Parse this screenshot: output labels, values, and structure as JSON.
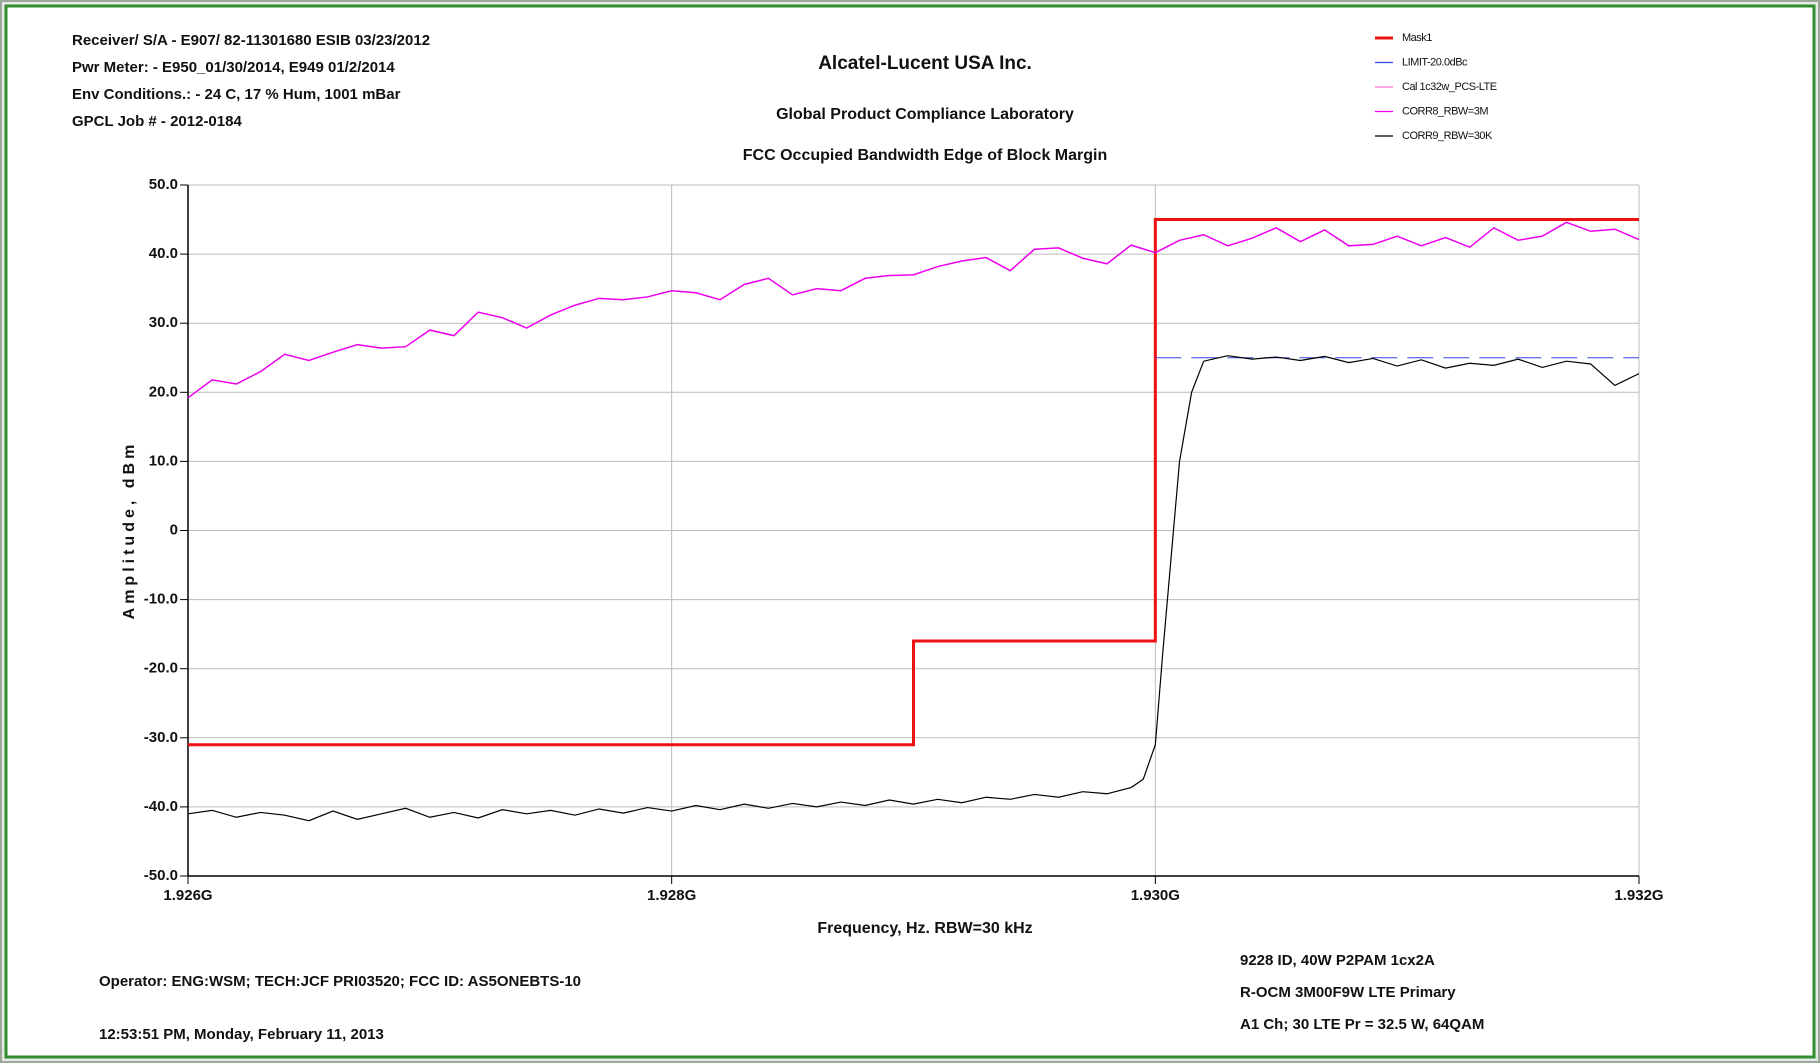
{
  "chart_data": {
    "type": "line",
    "header_lines": [
      "Receiver/ S/A - E907/ 82-11301680 ESIB 03/23/2012",
      "Pwr Meter: - E950_01/30/2014, E949 01/2/2014",
      "Env Conditions.: - 24 C, 17 % Hum, 1001 mBar",
      "GPCL Job #  - 2012-0184"
    ],
    "title": "Alcatel-Lucent USA Inc.",
    "subtitles": [
      "Global Product Compliance Laboratory",
      "FCC Occupied Bandwidth Edge of Block Margin"
    ],
    "x_label": "Frequency, Hz.   RBW=30 kHz",
    "y_label": "Amplitude, dBm",
    "footer_left": [
      "Operator:  ENG:WSM; TECH:JCF PRI03520;  FCC ID: AS5ONEBTS-10",
      "12:53:51 PM, Monday, February 11, 2013"
    ],
    "footer_right": [
      "9228 ID, 40W P2PAM 1cx2A",
      "R-OCM 3M00F9W LTE Primary",
      "A1 Ch; 30 LTE Pr = 32.5 W, 64QAM"
    ],
    "xlim": [
      1926000000,
      1932000000
    ],
    "xticks": [
      {
        "value": 1926000000,
        "label": "1.926G"
      },
      {
        "value": 1928000000,
        "label": "1.928G"
      },
      {
        "value": 1930000000,
        "label": "1.930G"
      },
      {
        "value": 1932000000,
        "label": "1.932G"
      }
    ],
    "ylim": [
      -50,
      50
    ],
    "yticks": [
      {
        "value": -50,
        "label": "-50.0"
      },
      {
        "value": -40,
        "label": "-40.0"
      },
      {
        "value": -30,
        "label": "-30.0"
      },
      {
        "value": -20,
        "label": "-20.0"
      },
      {
        "value": -10,
        "label": "-10.0"
      },
      0,
      {
        "value": 10,
        "label": "10.0"
      },
      {
        "value": 20,
        "label": "20.0"
      },
      {
        "value": 30,
        "label": "30.0"
      },
      {
        "value": 40,
        "label": "40.0"
      },
      {
        "value": 50,
        "label": "50.0"
      }
    ],
    "grid": true,
    "series": [
      {
        "name": "Mask1",
        "color": "#ee1111",
        "width": 3,
        "x": [
          1926000000,
          1929000000,
          1929000000,
          1930000000,
          1930000000,
          1932000000
        ],
        "values": [
          -31,
          -31,
          -16,
          -16,
          45,
          45
        ]
      },
      {
        "name": "LIMIT-20.0dBc",
        "color": "#3344dd",
        "width": 1,
        "dashed": true,
        "x": [
          1930000000,
          1932000000
        ],
        "values": [
          25,
          25
        ]
      },
      {
        "name": "Cal 1c32w_PCS-LTE",
        "color": "#ff77dd",
        "width": 1,
        "x": [],
        "values": []
      },
      {
        "name": "CORR8_RBW=3M",
        "color": "#ee00ee",
        "width": 1.5,
        "x": [
          1926000000,
          1926100000,
          1926200000,
          1926300000,
          1926400000,
          1926500000,
          1926600000,
          1926700000,
          1926800000,
          1926900000,
          1927000000,
          1927100000,
          1927200000,
          1927300000,
          1927400000,
          1927500000,
          1927600000,
          1927700000,
          1927800000,
          1927900000,
          1928000000,
          1928100000,
          1928200000,
          1928300000,
          1928400000,
          1928500000,
          1928600000,
          1928700000,
          1928800000,
          1928900000,
          1929000000,
          1929100000,
          1929200000,
          1929300000,
          1929400000,
          1929500000,
          1929600000,
          1929700000,
          1929800000,
          1929900000,
          1930000000,
          1930100000,
          1930200000,
          1930300000,
          1930400000,
          1930500000,
          1930600000,
          1930700000,
          1930800000,
          1930900000,
          1931000000,
          1931100000,
          1931200000,
          1931300000,
          1931400000,
          1931500000,
          1931600000,
          1931700000,
          1931800000,
          1931900000,
          1932000000
        ],
        "values": [
          19.2,
          21.8,
          21.2,
          23.0,
          25.5,
          24.6,
          25.8,
          26.9,
          26.4,
          26.6,
          29.0,
          28.2,
          31.6,
          30.8,
          29.3,
          31.2,
          32.6,
          33.6,
          33.4,
          33.8,
          34.7,
          34.4,
          33.4,
          35.6,
          36.5,
          34.1,
          35.0,
          34.7,
          36.5,
          36.9,
          37.0,
          38.2,
          39.0,
          39.5,
          37.6,
          40.7,
          40.9,
          39.4,
          38.6,
          41.3,
          40.2,
          42.0,
          42.8,
          41.2,
          42.3,
          43.8,
          41.8,
          43.5,
          41.2,
          41.4,
          42.6,
          41.2,
          42.4,
          41.0,
          43.8,
          42.0,
          42.6,
          44.6,
          43.3,
          43.6,
          42.1
        ]
      },
      {
        "name": "CORR9_RBW=30K",
        "color": "#000000",
        "width": 1.2,
        "x": [
          1926000000,
          1926100000,
          1926200000,
          1926300000,
          1926400000,
          1926500000,
          1926600000,
          1926700000,
          1926800000,
          1926900000,
          1927000000,
          1927100000,
          1927200000,
          1927300000,
          1927400000,
          1927500000,
          1927600000,
          1927700000,
          1927800000,
          1927900000,
          1928000000,
          1928100000,
          1928200000,
          1928300000,
          1928400000,
          1928500000,
          1928600000,
          1928700000,
          1928800000,
          1928900000,
          1929000000,
          1929100000,
          1929200000,
          1929300000,
          1929400000,
          1929500000,
          1929600000,
          1929700000,
          1929800000,
          1929900000,
          1929950000,
          1930000000,
          1930030000,
          1930060000,
          1930100000,
          1930150000,
          1930200000,
          1930300000,
          1930400000,
          1930500000,
          1930600000,
          1930700000,
          1930800000,
          1930900000,
          1931000000,
          1931100000,
          1931200000,
          1931300000,
          1931400000,
          1931500000,
          1931600000,
          1931700000,
          1931800000,
          1931900000,
          1932000000
        ],
        "values": [
          -41,
          -40.5,
          -41.5,
          -40.8,
          -41.2,
          -42,
          -40.6,
          -41.8,
          -41,
          -40.2,
          -41.5,
          -40.8,
          -41.6,
          -40.4,
          -41,
          -40.5,
          -41.2,
          -40.3,
          -40.9,
          -40.1,
          -40.6,
          -39.8,
          -40.4,
          -39.6,
          -40.2,
          -39.5,
          -40,
          -39.3,
          -39.8,
          -39,
          -39.6,
          -38.9,
          -39.4,
          -38.6,
          -38.9,
          -38.2,
          -38.6,
          -37.8,
          -38.1,
          -37.2,
          -36,
          -31,
          -18,
          -6,
          10,
          20,
          24.5,
          25.3,
          24.8,
          25.1,
          24.6,
          25.2,
          24.3,
          24.9,
          23.8,
          24.7,
          23.5,
          24.2,
          23.9,
          24.8,
          23.6,
          24.5,
          24.1,
          21,
          22.7
        ]
      }
    ]
  }
}
